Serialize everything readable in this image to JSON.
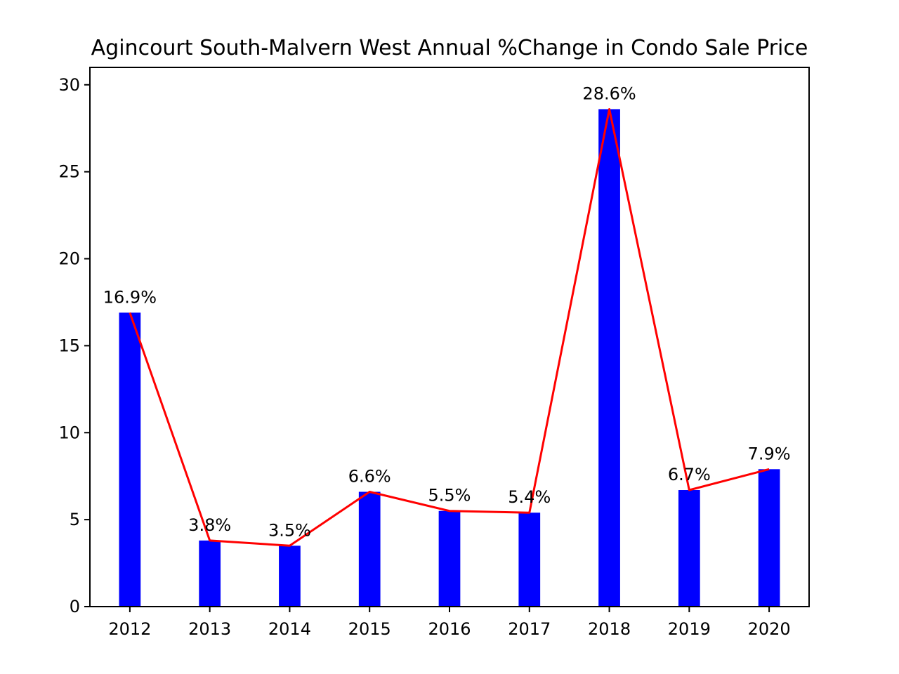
{
  "chart_data": {
    "type": "bar",
    "title": "Agincourt South-Malvern West Annual %Change in Condo Sale Price",
    "xlabel": "",
    "ylabel": "",
    "categories": [
      "2012",
      "2013",
      "2014",
      "2015",
      "2016",
      "2017",
      "2018",
      "2019",
      "2020"
    ],
    "values": [
      16.9,
      3.8,
      3.5,
      6.6,
      5.5,
      5.4,
      28.6,
      6.7,
      7.9
    ],
    "data_labels": [
      "16.9%",
      "3.8%",
      "3.5%",
      "6.6%",
      "5.5%",
      "5.4%",
      "28.6%",
      "6.7%",
      "7.9%"
    ],
    "line_overlay": {
      "values": [
        16.9,
        3.8,
        3.5,
        6.6,
        5.5,
        5.4,
        28.6,
        6.7,
        7.9
      ],
      "color": "#ff0000"
    },
    "bar_color": "#0000ff",
    "ylim": [
      0,
      31
    ],
    "yticks": [
      0,
      5,
      10,
      15,
      20,
      25,
      30
    ],
    "grid": false,
    "legend": "none"
  }
}
